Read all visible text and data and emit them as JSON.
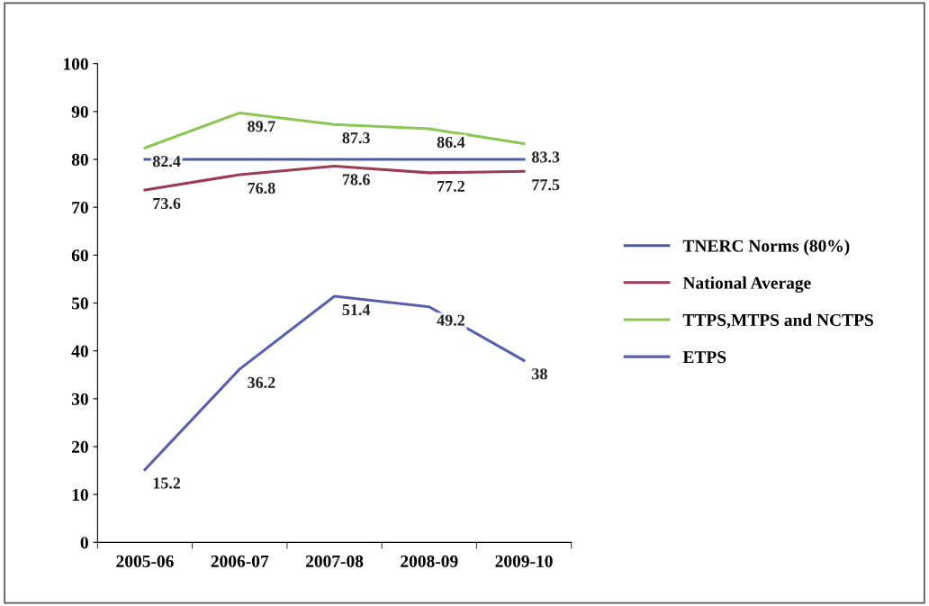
{
  "chart_data": {
    "type": "line",
    "categories": [
      "2005-06",
      "2006-07",
      "2007-08",
      "2008-09",
      "2009-10"
    ],
    "series": [
      {
        "name": "TNERC Norms (80%)",
        "color": "#4a5ca8",
        "values": [
          80,
          80,
          80,
          80,
          80
        ]
      },
      {
        "name": "National Average",
        "color": "#9b3b58",
        "values": [
          73.6,
          76.8,
          78.6,
          77.2,
          77.5
        ],
        "value_labels": [
          "73.6",
          "76.8",
          "78.6",
          "77.2",
          "77.5"
        ]
      },
      {
        "name": "TTPS,MTPS and NCTPS",
        "color": "#8cc653",
        "values": [
          82.4,
          89.7,
          87.3,
          86.4,
          83.3
        ],
        "value_labels": [
          "82.4",
          "89.7",
          "87.3",
          "86.4",
          "83.3"
        ]
      },
      {
        "name": "ETPS",
        "color": "#5860ae",
        "values": [
          15.2,
          36.2,
          51.4,
          49.2,
          38
        ],
        "value_labels": [
          "15.2",
          "36.2",
          "51.4",
          "49.2",
          "38"
        ]
      }
    ],
    "ylim": [
      0,
      100
    ],
    "yticks": [
      0,
      10,
      20,
      30,
      40,
      50,
      60,
      70,
      80,
      90,
      100
    ],
    "grid": false,
    "legend": "right",
    "marker": "none",
    "line_style": "solid"
  }
}
